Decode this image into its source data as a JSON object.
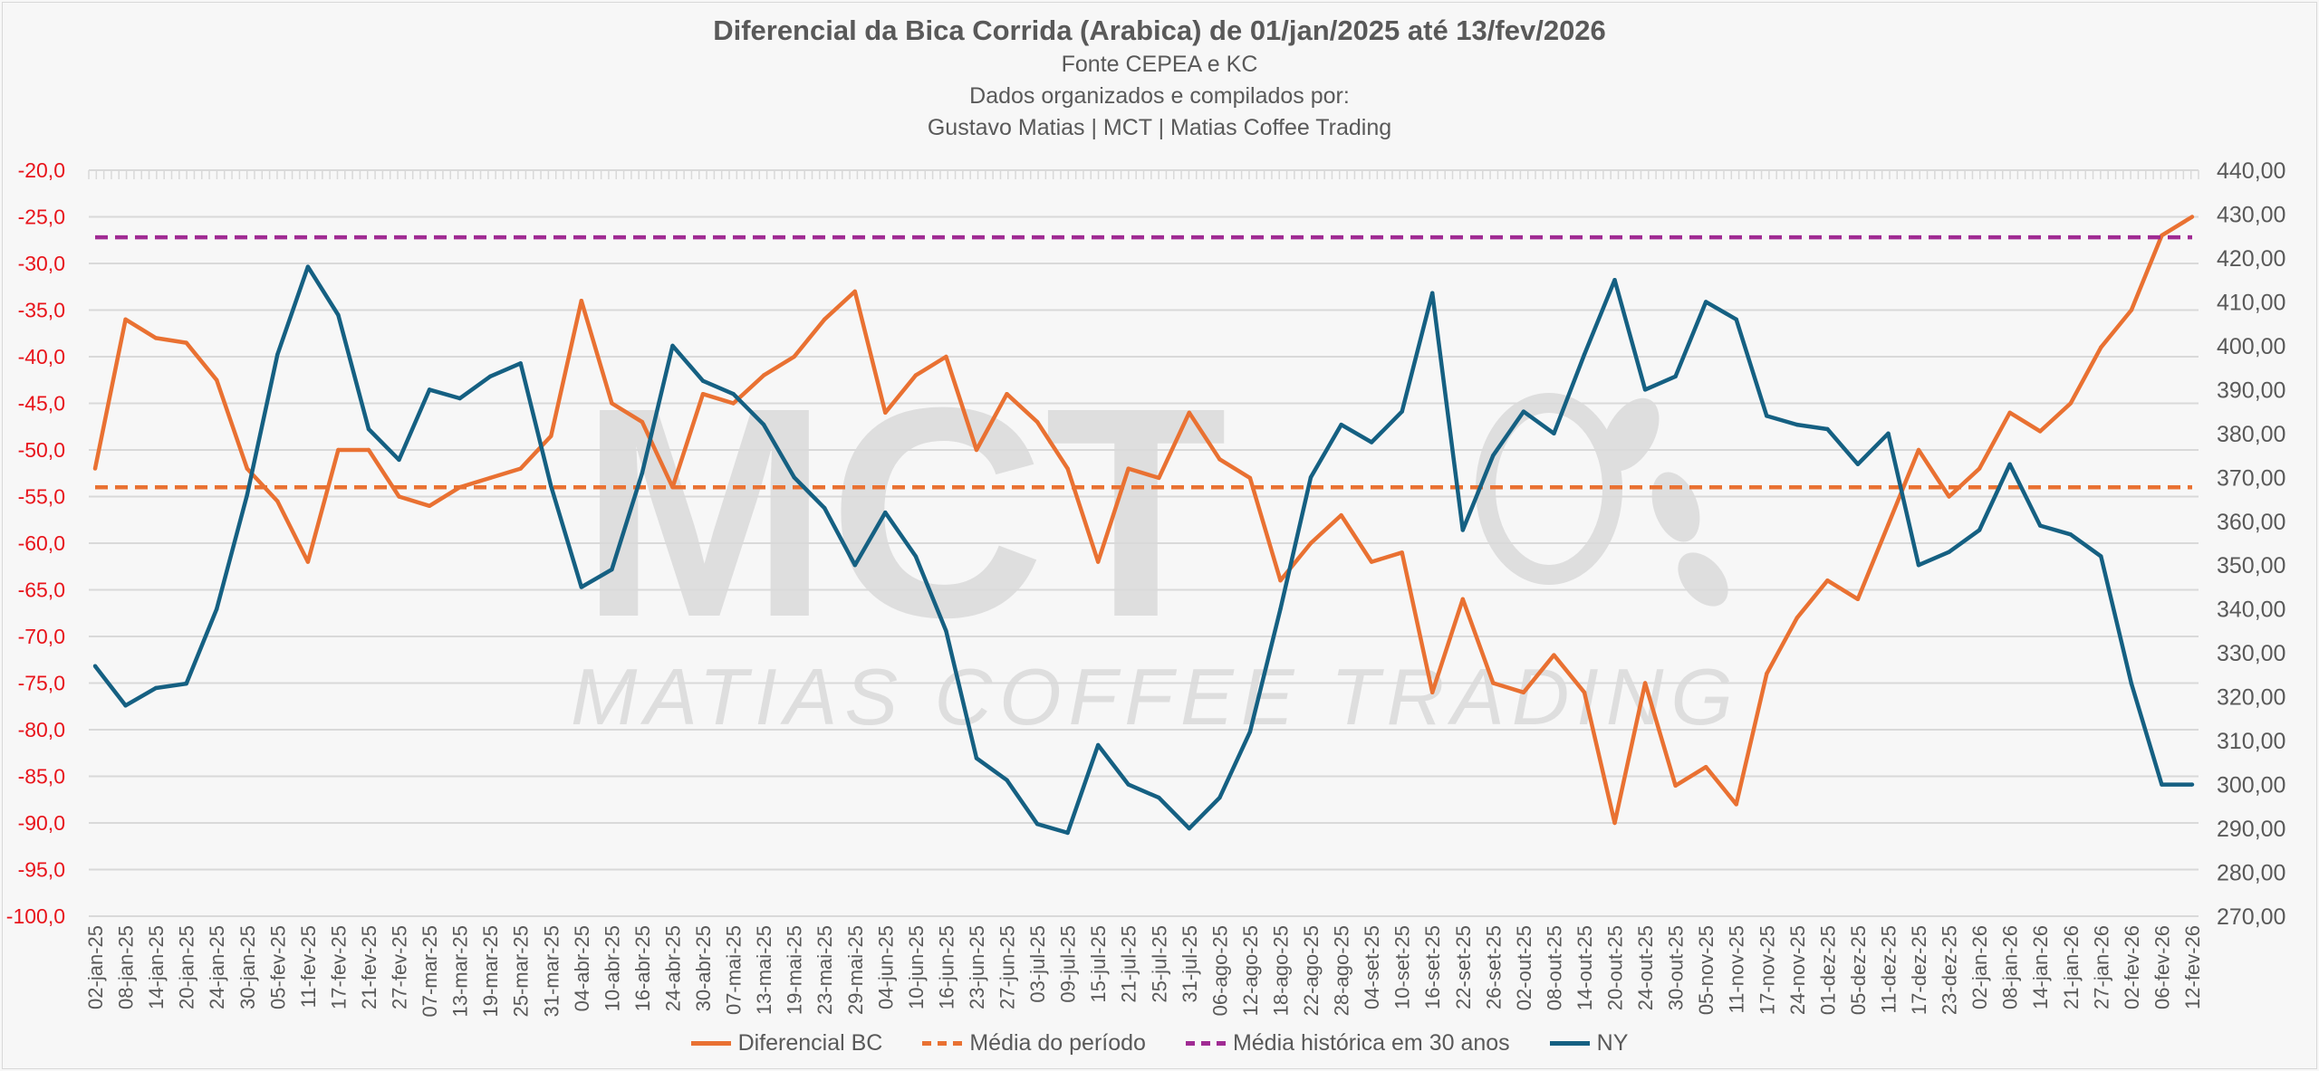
{
  "header": {
    "title": "Diferencial da Bica Corrida (Arabica) de 01/jan/2025 até 13/fev/2026",
    "subtitle_lines": [
      "Fonte CEPEA e KC",
      "Dados organizados e compilados por:",
      "Gustavo Matias | MCT | Matias Coffee Trading"
    ]
  },
  "watermark": {
    "logo_text": "MCT",
    "tagline": "MATIAS COFFEE TRADING"
  },
  "colors": {
    "bc": "#E97132",
    "media_periodo": "#E97132",
    "media_historica": "#A02B93",
    "ny": "#156082",
    "left_axis_text": "#E8141B",
    "text": "#595959",
    "grid": "#d9d9d9"
  },
  "chart_data": {
    "type": "line",
    "title": "Diferencial da Bica Corrida (Arabica) de 01/jan/2025 até 13/fev/2026",
    "x": [
      "02-jan-25",
      "08-jan-25",
      "14-jan-25",
      "20-jan-25",
      "24-jan-25",
      "30-jan-25",
      "05-fev-25",
      "11-fev-25",
      "17-fev-25",
      "21-fev-25",
      "27-fev-25",
      "07-mar-25",
      "13-mar-25",
      "19-mar-25",
      "25-mar-25",
      "31-mar-25",
      "04-abr-25",
      "10-abr-25",
      "16-abr-25",
      "24-abr-25",
      "30-abr-25",
      "07-mai-25",
      "13-mai-25",
      "19-mai-25",
      "23-mai-25",
      "29-mai-25",
      "04-jun-25",
      "10-jun-25",
      "16-jun-25",
      "23-jun-25",
      "27-jun-25",
      "03-jul-25",
      "09-jul-25",
      "15-jul-25",
      "21-jul-25",
      "25-jul-25",
      "31-jul-25",
      "06-ago-25",
      "12-ago-25",
      "18-ago-25",
      "22-ago-25",
      "28-ago-25",
      "04-set-25",
      "10-set-25",
      "16-set-25",
      "22-set-25",
      "26-set-25",
      "02-out-25",
      "08-out-25",
      "14-out-25",
      "20-out-25",
      "24-out-25",
      "30-out-25",
      "05-nov-25",
      "11-nov-25",
      "17-nov-25",
      "24-nov-25",
      "01-dez-25",
      "05-dez-25",
      "11-dez-25",
      "17-dez-25",
      "23-dez-25",
      "02-jan-26",
      "08-jan-26",
      "14-jan-26",
      "21-jan-26",
      "27-jan-26",
      "02-fev-26",
      "06-fev-26",
      "12-fev-26"
    ],
    "left_axis": {
      "range": [
        -100,
        -20
      ],
      "ticks": [
        "-20,0",
        "-25,0",
        "-30,0",
        "-35,0",
        "-40,0",
        "-45,0",
        "-50,0",
        "-55,0",
        "-60,0",
        "-65,0",
        "-70,0",
        "-75,0",
        "-80,0",
        "-85,0",
        "-90,0",
        "-95,0",
        "-100,0"
      ]
    },
    "right_axis": {
      "range": [
        270,
        440
      ],
      "ticks": [
        "440,00",
        "430,00",
        "420,00",
        "410,00",
        "400,00",
        "390,00",
        "380,00",
        "370,00",
        "360,00",
        "350,00",
        "340,00",
        "330,00",
        "320,00",
        "310,00",
        "300,00",
        "290,00",
        "280,00",
        "270,00"
      ]
    },
    "grid": true,
    "legend_position": "bottom",
    "series": [
      {
        "name": "Diferencial BC",
        "axis": "left",
        "style": "solid",
        "values": [
          -52,
          -36,
          -38,
          -38.5,
          -42.5,
          -52,
          -55.5,
          -62,
          -50,
          -50,
          -55,
          -56,
          -54,
          -53,
          -52,
          -48.5,
          -34,
          -45,
          -47,
          -54,
          -44,
          -45,
          -42,
          -40,
          -36,
          -33,
          -46,
          -42,
          -40,
          -50,
          -44,
          -47,
          -52,
          -62,
          -52,
          -53,
          -46,
          -51,
          -53,
          -64,
          -60,
          -57,
          -62,
          -61,
          -76,
          -66,
          -75,
          -76,
          -72,
          -76,
          -90,
          -75,
          -86,
          -84,
          -88,
          -74,
          -68,
          -64,
          -66,
          -58,
          -50,
          -55,
          -52,
          -46,
          -48,
          -45,
          -39,
          -35,
          -27,
          -25
        ]
      },
      {
        "name": "Média do período",
        "axis": "left",
        "style": "dashed",
        "constant": -54.0
      },
      {
        "name": "Média histórica em 30 anos",
        "axis": "left",
        "style": "dashed",
        "constant": -27.2
      },
      {
        "name": "NY",
        "axis": "right",
        "style": "solid",
        "values": [
          327,
          318,
          322,
          323,
          340,
          366,
          398,
          418,
          407,
          381,
          374,
          390,
          388,
          393,
          396,
          368,
          345,
          349,
          371,
          400,
          392,
          389,
          382,
          370,
          363,
          350,
          362,
          352,
          335,
          306,
          301,
          291,
          289,
          309,
          300,
          297,
          290,
          297,
          312,
          340,
          370,
          382,
          378,
          385,
          412,
          358,
          375,
          385,
          380,
          398,
          415,
          390,
          393,
          410,
          406,
          384,
          382,
          381,
          373,
          380,
          350,
          353,
          358,
          373,
          359,
          357,
          352,
          323,
          300,
          300
        ]
      }
    ]
  }
}
